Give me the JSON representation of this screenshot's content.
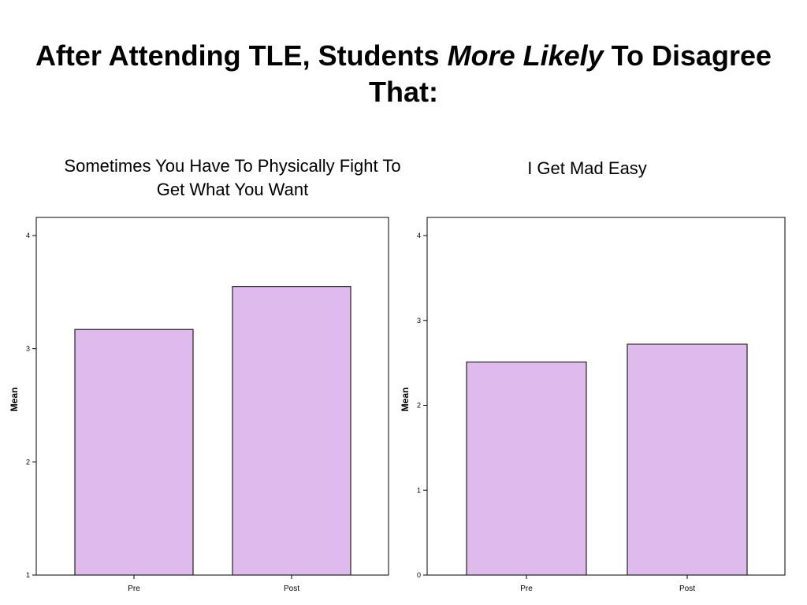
{
  "slide": {
    "title_part1": "After Attending TLE, Students ",
    "title_emphasis": "More Likely",
    "title_part2": " To Disagree That:"
  },
  "colors": {
    "bar_fill": "#dfbaed",
    "bar_stroke": "#222222",
    "frame": "#000000"
  },
  "chart_data": [
    {
      "type": "bar",
      "title": "Sometimes You Have To Physically Fight To Get What You Want",
      "categories": [
        "Pre",
        "Post"
      ],
      "values": [
        3.17,
        3.55
      ],
      "xlabel": "",
      "ylabel": "Mean",
      "ylim": [
        1,
        4
      ],
      "yticks": [
        1,
        2,
        3,
        4
      ],
      "grid": false,
      "legend": "none"
    },
    {
      "type": "bar",
      "title": "I Get Mad Easy",
      "categories": [
        "Pre",
        "Post"
      ],
      "values": [
        2.51,
        2.72
      ],
      "xlabel": "",
      "ylabel": "Mean",
      "ylim": [
        0,
        4
      ],
      "yticks": [
        0,
        1,
        2,
        3,
        4
      ],
      "grid": false,
      "legend": "none"
    }
  ]
}
